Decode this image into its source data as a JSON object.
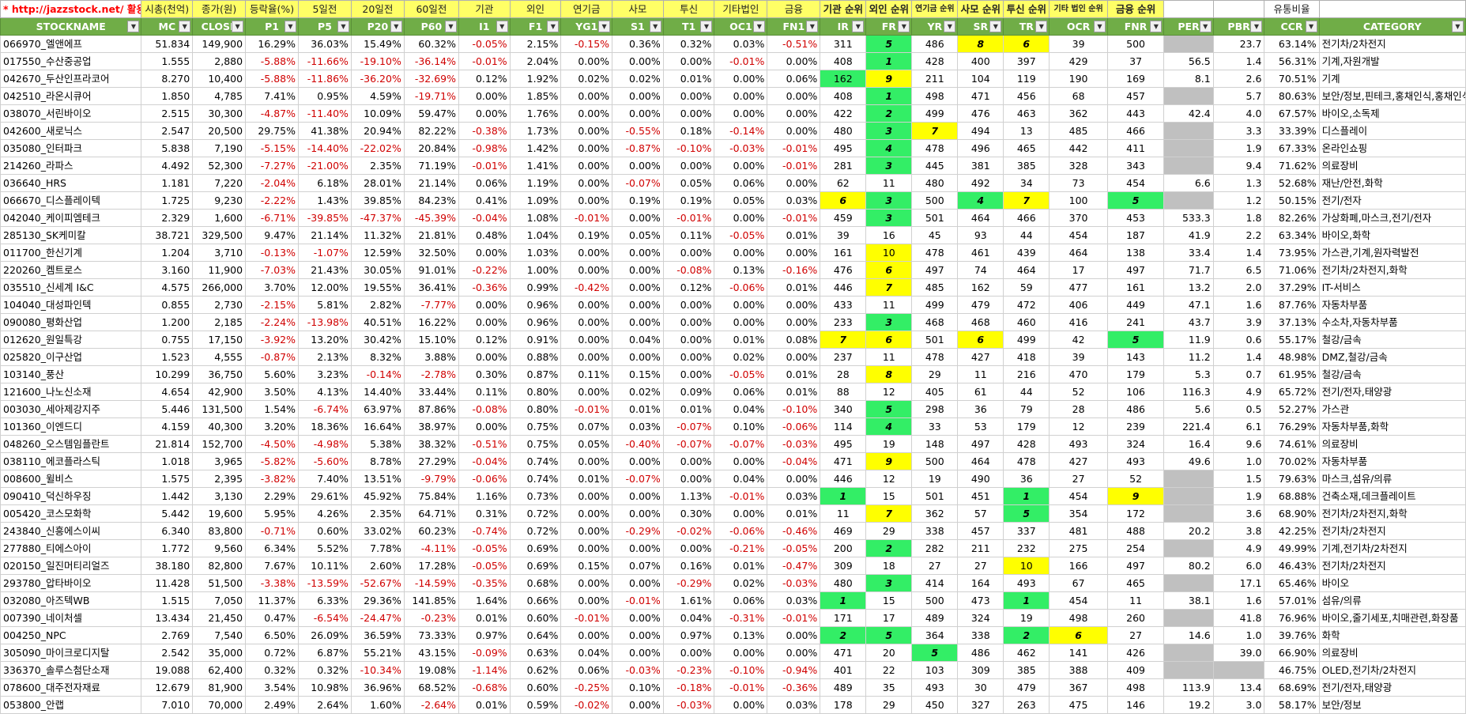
{
  "top_header": {
    "link": "* http://jazzstock.net/ 활용",
    "labels": [
      "시총(천억)",
      "종가(원)",
      "등락율(%)",
      "5일전",
      "20일전",
      "60일전",
      "기관",
      "외인",
      "연기금",
      "사모",
      "투신",
      "기타법인",
      "금융",
      "기관 순위",
      "외인 순위",
      "연기금 순위",
      "사모 순위",
      "투신 순위",
      "기타 법인 순위",
      "금융 순위",
      "",
      "",
      "유통비율",
      ""
    ]
  },
  "columns": [
    "STOCKNAME",
    "MC",
    "CLOSE",
    "P1",
    "P5",
    "P20",
    "P60",
    "I1",
    "F1",
    "YG1",
    "S1",
    "T1",
    "OC1",
    "FN1",
    "IR",
    "FR",
    "YR",
    "SR",
    "TR",
    "OCR",
    "FNR",
    "PER",
    "PBR",
    "CCR",
    "CATEGORY"
  ],
  "colors": {
    "header_green": "#70ad47",
    "yellow": "#ffff00",
    "green": "#33ee66",
    "gray": "#c0c0c0",
    "negative": "#d00000"
  },
  "rows": [
    [
      "066970_엘앤에프",
      "51.834",
      "149,900",
      "16.29%",
      "36.03%",
      "15.49%",
      "60.32%",
      "-0.05%",
      "2.15%",
      "-0.15%",
      "0.36%",
      "0.32%",
      "0.03%",
      "-0.51%",
      "311",
      "5",
      "486",
      "8",
      "6",
      "39",
      "500",
      "",
      "23.7",
      "63.14%",
      "전기차/2차전지"
    ],
    [
      "017550_수산중공업",
      "1.555",
      "2,880",
      "-5.88%",
      "-11.66%",
      "-19.10%",
      "-36.14%",
      "-0.01%",
      "2.04%",
      "0.00%",
      "0.00%",
      "0.00%",
      "-0.01%",
      "0.00%",
      "408",
      "1",
      "428",
      "400",
      "397",
      "429",
      "37",
      "56.5",
      "1.4",
      "56.31%",
      "기계,자원개발"
    ],
    [
      "042670_두산인프라코어",
      "8.270",
      "10,400",
      "-5.88%",
      "-11.86%",
      "-36.20%",
      "-32.69%",
      "0.12%",
      "1.92%",
      "0.02%",
      "0.02%",
      "0.01%",
      "0.00%",
      "0.06%",
      "162",
      "9",
      "211",
      "104",
      "119",
      "190",
      "169",
      "8.1",
      "2.6",
      "70.51%",
      "기계"
    ],
    [
      "042510_라온시큐어",
      "1.850",
      "4,785",
      "7.41%",
      "0.95%",
      "4.59%",
      "-19.71%",
      "0.00%",
      "1.85%",
      "0.00%",
      "0.00%",
      "0.00%",
      "0.00%",
      "0.00%",
      "408",
      "1",
      "498",
      "471",
      "456",
      "68",
      "457",
      "",
      "5.7",
      "80.63%",
      "보안/정보,핀테크,홍채인식,홍채인식"
    ],
    [
      "038070_서린바이오",
      "2.515",
      "30,300",
      "-4.87%",
      "-11.40%",
      "10.09%",
      "59.47%",
      "0.00%",
      "1.76%",
      "0.00%",
      "0.00%",
      "0.00%",
      "0.00%",
      "0.00%",
      "422",
      "2",
      "499",
      "476",
      "463",
      "362",
      "443",
      "42.4",
      "4.0",
      "67.57%",
      "바이오,소독제"
    ],
    [
      "042600_새로닉스",
      "2.547",
      "20,500",
      "29.75%",
      "41.38%",
      "20.94%",
      "82.22%",
      "-0.38%",
      "1.73%",
      "0.00%",
      "-0.55%",
      "0.18%",
      "-0.14%",
      "0.00%",
      "480",
      "3",
      "7",
      "494",
      "13",
      "485",
      "466",
      "",
      "3.3",
      "33.39%",
      "디스플레이"
    ],
    [
      "035080_인터파크",
      "5.838",
      "7,190",
      "-5.15%",
      "-14.40%",
      "-22.02%",
      "20.84%",
      "-0.98%",
      "1.42%",
      "0.00%",
      "-0.87%",
      "-0.10%",
      "-0.03%",
      "-0.01%",
      "495",
      "4",
      "478",
      "496",
      "465",
      "442",
      "411",
      "",
      "1.9",
      "67.33%",
      "온라인쇼핑"
    ],
    [
      "214260_라파스",
      "4.492",
      "52,300",
      "-7.27%",
      "-21.00%",
      "2.35%",
      "71.19%",
      "-0.01%",
      "1.41%",
      "0.00%",
      "0.00%",
      "0.00%",
      "0.00%",
      "-0.01%",
      "281",
      "3",
      "445",
      "381",
      "385",
      "328",
      "343",
      "",
      "9.4",
      "71.62%",
      "의료장비"
    ],
    [
      "036640_HRS",
      "1.181",
      "7,220",
      "-2.04%",
      "6.18%",
      "28.01%",
      "21.14%",
      "0.06%",
      "1.19%",
      "0.00%",
      "-0.07%",
      "0.05%",
      "0.06%",
      "0.00%",
      "62",
      "11",
      "480",
      "492",
      "34",
      "73",
      "454",
      "6.6",
      "1.3",
      "52.68%",
      "재난/안전,화학"
    ],
    [
      "066670_디스플레이텍",
      "1.725",
      "9,230",
      "-2.22%",
      "1.43%",
      "39.85%",
      "84.23%",
      "0.41%",
      "1.09%",
      "0.00%",
      "0.19%",
      "0.19%",
      "0.05%",
      "0.03%",
      "6",
      "3",
      "500",
      "4",
      "7",
      "100",
      "5",
      "",
      "1.2",
      "50.15%",
      "전기/전자"
    ],
    [
      "042040_케이피엠테크",
      "2.329",
      "1,600",
      "-6.71%",
      "-39.85%",
      "-47.37%",
      "-45.39%",
      "-0.04%",
      "1.08%",
      "-0.01%",
      "0.00%",
      "-0.01%",
      "0.00%",
      "-0.01%",
      "459",
      "3",
      "501",
      "464",
      "466",
      "370",
      "453",
      "533.3",
      "1.8",
      "82.26%",
      "가상화폐,마스크,전기/전자"
    ],
    [
      "285130_SK케미칼",
      "38.721",
      "329,500",
      "9.47%",
      "21.14%",
      "11.32%",
      "21.81%",
      "0.48%",
      "1.04%",
      "0.19%",
      "0.05%",
      "0.11%",
      "-0.05%",
      "0.01%",
      "39",
      "16",
      "45",
      "93",
      "44",
      "454",
      "187",
      "41.9",
      "2.2",
      "63.34%",
      "바이오,화학"
    ],
    [
      "011700_한신기계",
      "1.204",
      "3,710",
      "-0.13%",
      "-1.07%",
      "12.59%",
      "32.50%",
      "0.00%",
      "1.03%",
      "0.00%",
      "0.00%",
      "0.00%",
      "0.00%",
      "0.00%",
      "161",
      "10",
      "478",
      "461",
      "439",
      "464",
      "138",
      "33.4",
      "1.4",
      "73.95%",
      "가스관,기계,원자력발전"
    ],
    [
      "220260_켐트로스",
      "3.160",
      "11,900",
      "-7.03%",
      "21.43%",
      "30.05%",
      "91.01%",
      "-0.22%",
      "1.00%",
      "0.00%",
      "0.00%",
      "-0.08%",
      "0.13%",
      "-0.16%",
      "476",
      "6",
      "497",
      "74",
      "464",
      "17",
      "497",
      "71.7",
      "6.5",
      "71.06%",
      "전기차/2차전지,화학"
    ],
    [
      "035510_신세계 I&C",
      "4.575",
      "266,000",
      "3.70%",
      "12.00%",
      "19.55%",
      "36.41%",
      "-0.36%",
      "0.99%",
      "-0.42%",
      "0.00%",
      "0.12%",
      "-0.06%",
      "0.01%",
      "446",
      "7",
      "485",
      "162",
      "59",
      "477",
      "161",
      "13.2",
      "2.0",
      "37.29%",
      "IT-서비스"
    ],
    [
      "104040_대성파인텍",
      "0.855",
      "2,730",
      "-2.15%",
      "5.81%",
      "2.82%",
      "-7.77%",
      "0.00%",
      "0.96%",
      "0.00%",
      "0.00%",
      "0.00%",
      "0.00%",
      "0.00%",
      "433",
      "11",
      "499",
      "479",
      "472",
      "406",
      "449",
      "47.1",
      "1.6",
      "87.76%",
      "자동차부품"
    ],
    [
      "090080_평화산업",
      "1.200",
      "2,185",
      "-2.24%",
      "-13.98%",
      "40.51%",
      "16.22%",
      "0.00%",
      "0.96%",
      "0.00%",
      "0.00%",
      "0.00%",
      "0.00%",
      "0.00%",
      "233",
      "3",
      "468",
      "468",
      "460",
      "416",
      "241",
      "43.7",
      "3.9",
      "37.13%",
      "수소차,자동차부품"
    ],
    [
      "012620_원일특강",
      "0.755",
      "17,150",
      "-3.92%",
      "13.20%",
      "30.42%",
      "15.10%",
      "0.12%",
      "0.91%",
      "0.00%",
      "0.04%",
      "0.00%",
      "0.01%",
      "0.08%",
      "7",
      "6",
      "501",
      "6",
      "499",
      "42",
      "5",
      "11.9",
      "0.6",
      "55.17%",
      "철강/금속"
    ],
    [
      "025820_이구산업",
      "1.523",
      "4,555",
      "-0.87%",
      "2.13%",
      "8.32%",
      "3.88%",
      "0.00%",
      "0.88%",
      "0.00%",
      "0.00%",
      "0.00%",
      "0.02%",
      "0.00%",
      "237",
      "11",
      "478",
      "427",
      "418",
      "39",
      "143",
      "11.2",
      "1.4",
      "48.98%",
      "DMZ,철강/금속"
    ],
    [
      "103140_풍산",
      "10.299",
      "36,750",
      "5.60%",
      "3.23%",
      "-0.14%",
      "-2.78%",
      "0.30%",
      "0.87%",
      "0.11%",
      "0.15%",
      "0.00%",
      "-0.05%",
      "0.01%",
      "28",
      "8",
      "29",
      "11",
      "216",
      "470",
      "179",
      "5.3",
      "0.7",
      "61.95%",
      "철강/금속"
    ],
    [
      "121600_나노신소재",
      "4.654",
      "42,900",
      "3.50%",
      "4.13%",
      "14.40%",
      "33.44%",
      "0.11%",
      "0.80%",
      "0.00%",
      "0.02%",
      "0.09%",
      "0.06%",
      "0.01%",
      "88",
      "12",
      "405",
      "61",
      "44",
      "52",
      "106",
      "116.3",
      "4.9",
      "65.72%",
      "전기/전자,태양광"
    ],
    [
      "003030_세아제강지주",
      "5.446",
      "131,500",
      "1.54%",
      "-6.74%",
      "63.97%",
      "87.86%",
      "-0.08%",
      "0.80%",
      "-0.01%",
      "0.01%",
      "0.01%",
      "0.04%",
      "-0.10%",
      "340",
      "5",
      "298",
      "36",
      "79",
      "28",
      "486",
      "5.6",
      "0.5",
      "52.27%",
      "가스관"
    ],
    [
      "101360_이엔드디",
      "4.159",
      "40,300",
      "3.20%",
      "18.36%",
      "16.64%",
      "38.97%",
      "0.00%",
      "0.75%",
      "0.07%",
      "0.03%",
      "-0.07%",
      "0.10%",
      "-0.06%",
      "114",
      "4",
      "33",
      "53",
      "179",
      "12",
      "239",
      "221.4",
      "6.1",
      "76.29%",
      "자동차부품,화학"
    ],
    [
      "048260_오스템임플란트",
      "21.814",
      "152,700",
      "-4.50%",
      "-4.98%",
      "5.38%",
      "38.32%",
      "-0.51%",
      "0.75%",
      "0.05%",
      "-0.40%",
      "-0.07%",
      "-0.07%",
      "-0.03%",
      "495",
      "19",
      "148",
      "497",
      "428",
      "493",
      "324",
      "16.4",
      "9.6",
      "74.61%",
      "의료장비"
    ],
    [
      "038110_에코플라스틱",
      "1.018",
      "3,965",
      "-5.82%",
      "-5.60%",
      "8.78%",
      "27.29%",
      "-0.04%",
      "0.74%",
      "0.00%",
      "0.00%",
      "0.00%",
      "0.00%",
      "-0.04%",
      "471",
      "9",
      "500",
      "464",
      "478",
      "427",
      "493",
      "49.6",
      "1.0",
      "70.02%",
      "자동차부품"
    ],
    [
      "008600_윌비스",
      "1.575",
      "2,395",
      "-3.82%",
      "7.40%",
      "13.51%",
      "-9.79%",
      "-0.06%",
      "0.74%",
      "0.01%",
      "-0.07%",
      "0.00%",
      "0.04%",
      "0.00%",
      "446",
      "12",
      "19",
      "490",
      "36",
      "27",
      "52",
      "",
      "1.5",
      "79.63%",
      "마스크,섬유/의류"
    ],
    [
      "090410_덕신하우징",
      "1.442",
      "3,130",
      "2.29%",
      "29.61%",
      "45.92%",
      "75.84%",
      "1.16%",
      "0.73%",
      "0.00%",
      "0.00%",
      "1.13%",
      "-0.01%",
      "0.03%",
      "1",
      "15",
      "501",
      "451",
      "1",
      "454",
      "9",
      "",
      "1.9",
      "68.88%",
      "건축소재,데크플레이트"
    ],
    [
      "005420_코스모화학",
      "5.442",
      "19,600",
      "5.95%",
      "4.26%",
      "2.35%",
      "64.71%",
      "0.31%",
      "0.72%",
      "0.00%",
      "0.00%",
      "0.30%",
      "0.00%",
      "0.01%",
      "11",
      "7",
      "362",
      "57",
      "5",
      "354",
      "172",
      "",
      "3.6",
      "68.90%",
      "전기차/2차전지,화학"
    ],
    [
      "243840_신흥에스이씨",
      "6.340",
      "83,800",
      "-0.71%",
      "0.60%",
      "33.02%",
      "60.23%",
      "-0.74%",
      "0.72%",
      "0.00%",
      "-0.29%",
      "-0.02%",
      "-0.06%",
      "-0.46%",
      "469",
      "29",
      "338",
      "457",
      "337",
      "481",
      "488",
      "20.2",
      "3.8",
      "42.25%",
      "전기차/2차전지"
    ],
    [
      "277880_티에스아이",
      "1.772",
      "9,560",
      "6.34%",
      "5.52%",
      "7.78%",
      "-4.11%",
      "-0.05%",
      "0.69%",
      "0.00%",
      "0.00%",
      "0.00%",
      "-0.21%",
      "-0.05%",
      "200",
      "2",
      "282",
      "211",
      "232",
      "275",
      "254",
      "",
      "4.9",
      "49.99%",
      "기계,전기차/2차전지"
    ],
    [
      "020150_일진머티리얼즈",
      "38.180",
      "82,800",
      "7.67%",
      "10.11%",
      "2.60%",
      "17.28%",
      "-0.05%",
      "0.69%",
      "0.15%",
      "0.07%",
      "0.16%",
      "0.01%",
      "-0.47%",
      "309",
      "18",
      "27",
      "27",
      "10",
      "166",
      "497",
      "80.2",
      "6.0",
      "46.43%",
      "전기차/2차전지"
    ],
    [
      "293780_압타바이오",
      "11.428",
      "51,500",
      "-3.38%",
      "-13.59%",
      "-52.67%",
      "-14.59%",
      "-0.35%",
      "0.68%",
      "0.00%",
      "0.00%",
      "-0.29%",
      "0.02%",
      "-0.03%",
      "480",
      "3",
      "414",
      "164",
      "493",
      "67",
      "465",
      "",
      "17.1",
      "65.46%",
      "바이오"
    ],
    [
      "032080_아즈텍WB",
      "1.515",
      "7,050",
      "11.37%",
      "6.33%",
      "29.36%",
      "141.85%",
      "1.64%",
      "0.66%",
      "0.00%",
      "-0.01%",
      "1.61%",
      "0.06%",
      "0.03%",
      "1",
      "15",
      "500",
      "473",
      "1",
      "454",
      "11",
      "38.1",
      "1.6",
      "57.01%",
      "섬유/의류"
    ],
    [
      "007390_네이처셀",
      "13.434",
      "21,450",
      "0.47%",
      "-6.54%",
      "-24.47%",
      "-0.23%",
      "0.01%",
      "0.60%",
      "-0.01%",
      "0.00%",
      "0.04%",
      "-0.31%",
      "-0.01%",
      "171",
      "17",
      "489",
      "324",
      "19",
      "498",
      "260",
      "",
      "41.8",
      "76.96%",
      "바이오,줄기세포,치매관련,화장품"
    ],
    [
      "004250_NPC",
      "2.769",
      "7,540",
      "6.50%",
      "26.09%",
      "36.59%",
      "73.33%",
      "0.97%",
      "0.64%",
      "0.00%",
      "0.00%",
      "0.97%",
      "0.13%",
      "0.00%",
      "2",
      "5",
      "364",
      "338",
      "2",
      "6",
      "27",
      "14.6",
      "1.0",
      "39.76%",
      "화학"
    ],
    [
      "305090_마이크로디지탈",
      "2.542",
      "35,000",
      "0.72%",
      "6.87%",
      "55.21%",
      "43.15%",
      "-0.09%",
      "0.63%",
      "0.04%",
      "0.00%",
      "0.00%",
      "0.00%",
      "0.00%",
      "471",
      "20",
      "5",
      "486",
      "462",
      "141",
      "426",
      "",
      "39.0",
      "66.90%",
      "의료장비"
    ],
    [
      "336370_솔루스첨단소재",
      "19.088",
      "62,400",
      "0.32%",
      "0.32%",
      "-10.34%",
      "19.08%",
      "-1.14%",
      "0.62%",
      "0.06%",
      "-0.03%",
      "-0.23%",
      "-0.10%",
      "-0.94%",
      "401",
      "22",
      "103",
      "309",
      "385",
      "388",
      "409",
      "",
      "",
      "46.75%",
      "OLED,전기차/2차전지"
    ],
    [
      "078600_대주전자재료",
      "12.679",
      "81,900",
      "3.54%",
      "10.98%",
      "36.96%",
      "68.52%",
      "-0.68%",
      "0.60%",
      "-0.25%",
      "0.10%",
      "-0.18%",
      "-0.01%",
      "-0.36%",
      "489",
      "35",
      "493",
      "30",
      "479",
      "367",
      "498",
      "113.9",
      "13.4",
      "68.69%",
      "전기/전자,태양광"
    ],
    [
      "053800_안랩",
      "7.010",
      "70,000",
      "2.49%",
      "2.64%",
      "1.60%",
      "-2.64%",
      "0.01%",
      "0.59%",
      "-0.02%",
      "0.00%",
      "-0.03%",
      "0.00%",
      "0.03%",
      "178",
      "29",
      "450",
      "327",
      "263",
      "475",
      "146",
      "19.2",
      "3.0",
      "58.17%",
      "보안/정보"
    ]
  ],
  "highlights": {
    "yellow": [
      [
        0,
        17
      ],
      [
        0,
        18
      ],
      [
        2,
        15
      ],
      [
        5,
        16
      ],
      [
        9,
        14
      ],
      [
        9,
        18
      ],
      [
        12,
        15
      ],
      [
        13,
        15
      ],
      [
        14,
        15
      ],
      [
        17,
        14
      ],
      [
        17,
        15
      ],
      [
        17,
        17
      ],
      [
        19,
        15
      ],
      [
        24,
        15
      ],
      [
        26,
        20
      ],
      [
        27,
        15
      ],
      [
        30,
        18
      ],
      [
        34,
        19
      ]
    ],
    "green": [
      [
        0,
        15
      ],
      [
        1,
        15
      ],
      [
        2,
        14
      ],
      [
        3,
        15
      ],
      [
        4,
        15
      ],
      [
        5,
        15
      ],
      [
        6,
        15
      ],
      [
        7,
        15
      ],
      [
        9,
        15
      ],
      [
        9,
        17
      ],
      [
        9,
        20
      ],
      [
        10,
        15
      ],
      [
        16,
        15
      ],
      [
        17,
        20
      ],
      [
        21,
        15
      ],
      [
        22,
        15
      ],
      [
        26,
        14
      ],
      [
        26,
        18
      ],
      [
        27,
        18
      ],
      [
        29,
        15
      ],
      [
        31,
        15
      ],
      [
        32,
        14
      ],
      [
        32,
        18
      ],
      [
        34,
        14
      ],
      [
        34,
        15
      ],
      [
        34,
        18
      ],
      [
        35,
        16
      ]
    ],
    "gray": [
      [
        0,
        21
      ],
      [
        3,
        21
      ],
      [
        5,
        21
      ],
      [
        6,
        21
      ],
      [
        7,
        21
      ],
      [
        9,
        21
      ],
      [
        25,
        21
      ],
      [
        26,
        21
      ],
      [
        27,
        21
      ],
      [
        29,
        21
      ],
      [
        31,
        21
      ],
      [
        33,
        21
      ],
      [
        35,
        21
      ],
      [
        36,
        21
      ],
      [
        36,
        22
      ]
    ]
  }
}
